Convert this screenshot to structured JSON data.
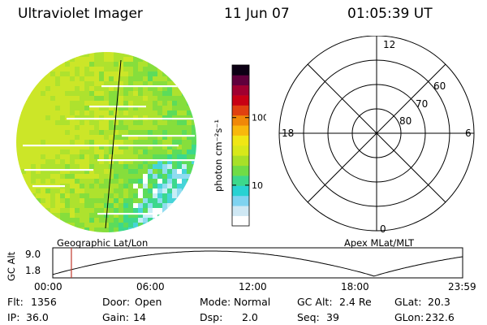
{
  "header": {
    "instrument": "Ultraviolet Imager",
    "date": "11 Jun 07",
    "time": "01:05:39 UT"
  },
  "image_panel": {
    "label": "Geographic Lat/Lon"
  },
  "colorbar": {
    "unit_label": "photon cm⁻²s⁻¹",
    "scale": "log",
    "tick_labels": [
      "100",
      "10"
    ],
    "tick_values": [
      100,
      10
    ],
    "colors_low_to_high": [
      "#ffffff",
      "#cfe8f4",
      "#7fd3f0",
      "#28d2d2",
      "#3cd88c",
      "#70dc46",
      "#a8e028",
      "#d8e81a",
      "#f0e614",
      "#f8b80c",
      "#f08808",
      "#e04010",
      "#c80014",
      "#a00030",
      "#60003c",
      "#0c0014"
    ]
  },
  "polar_panel": {
    "label": "Apex MLat/MLT",
    "mlt_labels": {
      "top": "12",
      "bottom": "0",
      "left": "18",
      "right": "6"
    },
    "mlat_labels": [
      "60",
      "70",
      "80"
    ],
    "mlat_values": [
      60,
      70,
      80
    ]
  },
  "orbit_plot": {
    "ylabel": "GC Alt",
    "y_ticks": [
      "9.0",
      "1.8"
    ],
    "x_ticks": [
      "00:00",
      "06:00",
      "12:00",
      "18:00",
      "23:59"
    ],
    "current_time_hours": 1.09
  },
  "info": {
    "row1": [
      {
        "label": "Flt:",
        "value": "1356"
      },
      {
        "label": "Door:",
        "value": "Open"
      },
      {
        "label": "Mode:",
        "value": "Normal"
      },
      {
        "label": "GC Alt:",
        "value": "2.4 Re"
      },
      {
        "label": "GLat:",
        "value": "20.3"
      }
    ],
    "row2": [
      {
        "label": "IP:",
        "value": "36.0"
      },
      {
        "label": "Gain:",
        "value": "14"
      },
      {
        "label": "Dsp:",
        "value": "2.0"
      },
      {
        "label": "Seq:",
        "value": "39"
      },
      {
        "label": "GLon:",
        "value": "232.6"
      }
    ]
  }
}
